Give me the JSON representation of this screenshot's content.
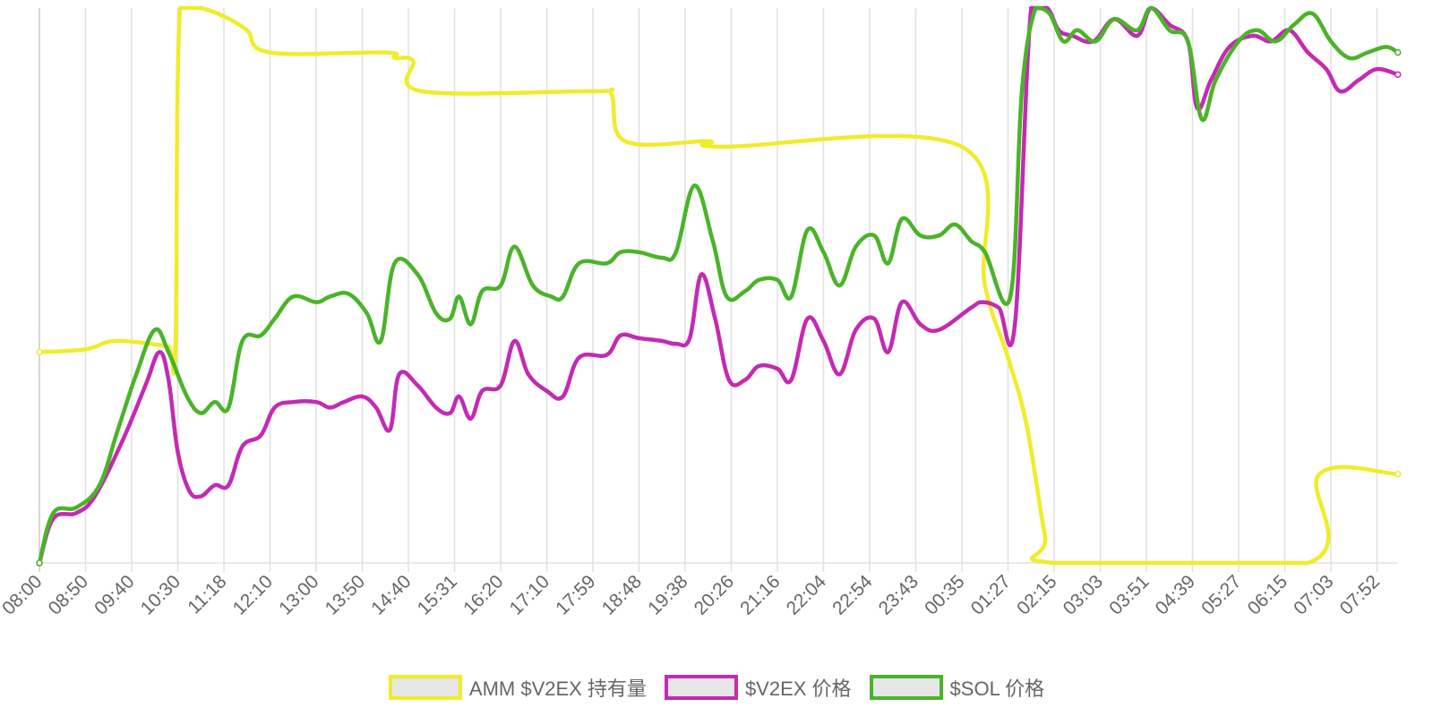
{
  "chart_data": {
    "type": "line",
    "title": "",
    "xlabel": "",
    "ylabel": "",
    "grid": true,
    "legend_position": "bottom",
    "x_tick_labels": [
      "08:00",
      "08:50",
      "09:40",
      "10:30",
      "11:18",
      "12:10",
      "13:00",
      "13:50",
      "14:40",
      "15:31",
      "16:20",
      "17:10",
      "17:59",
      "18:48",
      "19:38",
      "20:26",
      "21:16",
      "22:04",
      "22:54",
      "23:43",
      "00:35",
      "01:27",
      "02:15",
      "03:03",
      "03:51",
      "04:39",
      "05:27",
      "06:15",
      "07:03",
      "07:52"
    ],
    "x_range": [
      0,
      29.45
    ],
    "y_range": [
      0,
      100
    ],
    "series": [
      {
        "name": "AMM $V2EX 持有量",
        "color": "#f0ec2a",
        "points": [
          [
            0,
            38
          ],
          [
            1,
            38.5
          ],
          [
            1.6,
            40
          ],
          [
            2.4,
            39.5
          ],
          [
            2.8,
            39
          ],
          [
            2.95,
            39
          ],
          [
            3.05,
            100
          ],
          [
            3.5,
            100
          ],
          [
            4,
            98.5
          ],
          [
            4.5,
            96
          ],
          [
            5,
            92
          ],
          [
            7.5,
            92
          ],
          [
            7.7,
            91
          ],
          [
            8.1,
            90.5
          ],
          [
            8.3,
            85
          ],
          [
            12,
            85
          ],
          [
            12.4,
            84.5
          ],
          [
            12.7,
            76
          ],
          [
            14.5,
            76
          ],
          [
            14.8,
            75
          ],
          [
            20,
            75
          ],
          [
            20.5,
            50
          ],
          [
            21,
            37
          ],
          [
            21.4,
            25
          ],
          [
            21.8,
            5
          ],
          [
            22,
            0
          ],
          [
            27.5,
            0
          ],
          [
            27.75,
            16
          ],
          [
            29.45,
            16
          ]
        ]
      },
      {
        "name": "$V2EX 价格",
        "color": "#c42ab2",
        "points": [
          [
            0,
            0
          ],
          [
            0.3,
            8
          ],
          [
            0.8,
            9
          ],
          [
            1.2,
            12
          ],
          [
            1.8,
            22
          ],
          [
            2.3,
            32
          ],
          [
            2.6,
            38
          ],
          [
            2.8,
            33
          ],
          [
            3,
            20
          ],
          [
            3.25,
            13
          ],
          [
            3.5,
            12
          ],
          [
            3.8,
            14
          ],
          [
            4.1,
            14
          ],
          [
            4.4,
            21
          ],
          [
            4.8,
            23
          ],
          [
            5.1,
            28
          ],
          [
            5.5,
            29
          ],
          [
            6,
            29
          ],
          [
            6.3,
            28
          ],
          [
            6.6,
            29
          ],
          [
            7,
            30
          ],
          [
            7.3,
            28
          ],
          [
            7.6,
            24
          ],
          [
            7.8,
            34
          ],
          [
            8.2,
            32
          ],
          [
            8.6,
            28
          ],
          [
            8.9,
            27
          ],
          [
            9.1,
            30
          ],
          [
            9.35,
            26
          ],
          [
            9.6,
            31
          ],
          [
            10,
            32
          ],
          [
            10.3,
            40
          ],
          [
            10.6,
            34
          ],
          [
            11,
            31
          ],
          [
            11.35,
            30
          ],
          [
            11.7,
            37
          ],
          [
            12.3,
            37.5
          ],
          [
            12.6,
            41
          ],
          [
            13,
            40.5
          ],
          [
            13.5,
            40
          ],
          [
            13.8,
            39.5
          ],
          [
            14.1,
            40.5
          ],
          [
            14.35,
            52
          ],
          [
            14.65,
            44
          ],
          [
            14.95,
            33
          ],
          [
            15.3,
            33
          ],
          [
            15.6,
            35.5
          ],
          [
            16,
            35
          ],
          [
            16.3,
            33
          ],
          [
            16.65,
            44
          ],
          [
            17,
            40
          ],
          [
            17.35,
            34
          ],
          [
            17.7,
            42
          ],
          [
            18.1,
            44
          ],
          [
            18.4,
            38
          ],
          [
            18.7,
            47
          ],
          [
            19.1,
            43
          ],
          [
            19.5,
            42
          ],
          [
            20.2,
            46
          ],
          [
            20.45,
            47
          ],
          [
            20.8,
            46
          ],
          [
            21.15,
            43
          ],
          [
            21.5,
            100
          ],
          [
            21.85,
            100
          ],
          [
            22.1,
            96
          ],
          [
            22.4,
            95
          ],
          [
            22.85,
            94
          ],
          [
            23.3,
            98
          ],
          [
            23.8,
            95
          ],
          [
            24.1,
            100
          ],
          [
            24.5,
            97
          ],
          [
            24.9,
            94
          ],
          [
            25.1,
            82
          ],
          [
            25.4,
            87
          ],
          [
            25.8,
            93
          ],
          [
            26.3,
            95
          ],
          [
            26.7,
            94
          ],
          [
            27.1,
            96
          ],
          [
            27.5,
            92
          ],
          [
            27.9,
            89
          ],
          [
            28.2,
            85
          ],
          [
            28.6,
            87
          ],
          [
            29,
            89
          ],
          [
            29.45,
            88
          ]
        ]
      },
      {
        "name": "$SOL 价格",
        "color": "#4ab428",
        "points": [
          [
            0,
            0
          ],
          [
            0.3,
            9
          ],
          [
            0.8,
            10
          ],
          [
            1.3,
            14
          ],
          [
            1.7,
            24
          ],
          [
            2.1,
            34
          ],
          [
            2.5,
            42
          ],
          [
            2.8,
            38
          ],
          [
            3.2,
            30
          ],
          [
            3.5,
            27
          ],
          [
            3.8,
            29
          ],
          [
            4.1,
            28
          ],
          [
            4.4,
            40
          ],
          [
            4.8,
            41
          ],
          [
            5.1,
            44
          ],
          [
            5.5,
            48
          ],
          [
            6,
            47
          ],
          [
            6.3,
            48
          ],
          [
            6.7,
            48.5
          ],
          [
            7.1,
            45
          ],
          [
            7.4,
            40
          ],
          [
            7.7,
            54
          ],
          [
            8.2,
            52
          ],
          [
            8.6,
            45
          ],
          [
            8.9,
            44
          ],
          [
            9.1,
            48
          ],
          [
            9.35,
            43
          ],
          [
            9.6,
            49
          ],
          [
            10,
            50
          ],
          [
            10.3,
            57
          ],
          [
            10.7,
            50
          ],
          [
            11.1,
            48
          ],
          [
            11.35,
            48
          ],
          [
            11.7,
            54
          ],
          [
            12.3,
            54
          ],
          [
            12.6,
            56
          ],
          [
            13,
            56
          ],
          [
            13.5,
            55
          ],
          [
            13.8,
            56
          ],
          [
            14.2,
            68
          ],
          [
            14.6,
            58
          ],
          [
            14.9,
            48
          ],
          [
            15.3,
            49
          ],
          [
            15.6,
            51
          ],
          [
            16,
            51
          ],
          [
            16.3,
            48
          ],
          [
            16.65,
            60
          ],
          [
            17,
            56
          ],
          [
            17.35,
            50
          ],
          [
            17.7,
            57
          ],
          [
            18.1,
            59
          ],
          [
            18.4,
            54
          ],
          [
            18.7,
            62
          ],
          [
            19.1,
            59
          ],
          [
            19.5,
            59
          ],
          [
            19.85,
            61
          ],
          [
            20.2,
            58
          ],
          [
            20.5,
            56
          ],
          [
            21.05,
            48
          ],
          [
            21.3,
            85
          ],
          [
            21.6,
            100
          ],
          [
            21.9,
            99
          ],
          [
            22.2,
            94
          ],
          [
            22.5,
            96
          ],
          [
            22.9,
            94
          ],
          [
            23.3,
            98
          ],
          [
            23.8,
            96
          ],
          [
            24.1,
            100
          ],
          [
            24.5,
            96
          ],
          [
            24.9,
            94
          ],
          [
            25.2,
            80
          ],
          [
            25.5,
            87
          ],
          [
            26,
            94
          ],
          [
            26.4,
            96
          ],
          [
            26.8,
            94
          ],
          [
            27.2,
            97
          ],
          [
            27.6,
            99
          ],
          [
            28,
            94
          ],
          [
            28.4,
            91
          ],
          [
            28.8,
            92
          ],
          [
            29.2,
            93
          ],
          [
            29.45,
            92
          ]
        ]
      }
    ]
  }
}
